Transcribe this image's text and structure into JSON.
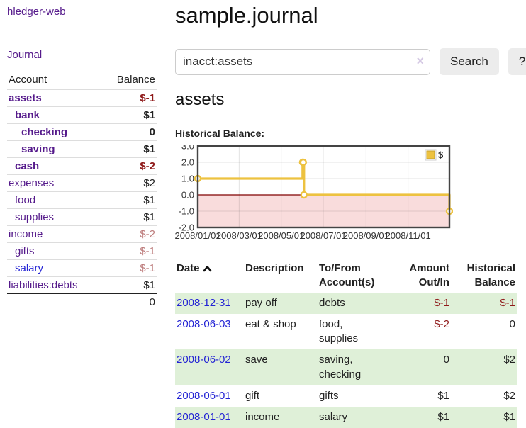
{
  "brand": "hledger-web",
  "sidebar": {
    "journal_link": "Journal",
    "accounts_header": {
      "account": "Account",
      "balance": "Balance"
    },
    "accounts": [
      {
        "name": "assets",
        "balance": "$-1",
        "level": 1,
        "bold": true
      },
      {
        "name": "bank",
        "balance": "$1",
        "level": 2,
        "bold": true
      },
      {
        "name": "checking",
        "balance": "0",
        "level": 3,
        "bold": true
      },
      {
        "name": "saving",
        "balance": "$1",
        "level": 3,
        "bold": true
      },
      {
        "name": "cash",
        "balance": "$-2",
        "level": 2,
        "bold": true
      },
      {
        "name": "expenses",
        "balance": "$2",
        "level": 1,
        "bold": false
      },
      {
        "name": "food",
        "balance": "$1",
        "level": 2,
        "bold": false
      },
      {
        "name": "supplies",
        "balance": "$1",
        "level": 2,
        "bold": false
      },
      {
        "name": "income",
        "balance": "$-2",
        "level": 1,
        "bold": false
      },
      {
        "name": "gifts",
        "balance": "$-1",
        "level": 2,
        "bold": false
      },
      {
        "name": "salary",
        "balance": "$-1",
        "level": 2,
        "bold": false,
        "link_color": "blue"
      },
      {
        "name": "liabilities:debts",
        "balance": "$1",
        "level": 1,
        "bold": false
      }
    ],
    "total": "0"
  },
  "header": {
    "title": "sample.journal"
  },
  "search": {
    "value": "inacct:assets",
    "clear_icon": "×",
    "button": "Search",
    "help_button": "?"
  },
  "account_page": {
    "title": "assets",
    "chart_label": "Historical Balance:"
  },
  "chart_data": {
    "type": "line",
    "step": true,
    "title": "Historical Balance",
    "series": [
      {
        "name": "$",
        "color": "#edc240",
        "points": [
          [
            "2008-01-01",
            1
          ],
          [
            "2008-06-01",
            2
          ],
          [
            "2008-06-02",
            2
          ],
          [
            "2008-06-03",
            0
          ],
          [
            "2008-12-31",
            -1
          ]
        ]
      }
    ],
    "x_ticks": [
      "2008/01/01",
      "2008/03/01",
      "2008/05/01",
      "2008/07/01",
      "2008/09/01",
      "2008/11/01"
    ],
    "y_ticks": [
      "3.0",
      "2.0",
      "1.0",
      "0.0",
      "-1.0",
      "-2.0"
    ],
    "xlim": [
      "2008-01-01",
      "2008-12-31"
    ],
    "ylim": [
      -2,
      3
    ],
    "grid": true,
    "legend_position": "top-right",
    "negative_region_color": "#f9dcdc",
    "zero_line_color": "#800000",
    "border_color": "#444444"
  },
  "register": {
    "headers": [
      "Date",
      "Description",
      "To/From Account(s)",
      "Amount Out/In",
      "Historical Balance"
    ],
    "rows": [
      {
        "date": "2008-12-31",
        "description": "pay off",
        "accounts": "debts",
        "amount": "$-1",
        "balance": "$-1"
      },
      {
        "date": "2008-06-03",
        "description": "eat & shop",
        "accounts": "food, supplies",
        "amount": "$-2",
        "balance": "0"
      },
      {
        "date": "2008-06-02",
        "description": "save",
        "accounts": "saving, checking",
        "amount": "0",
        "balance": "$2"
      },
      {
        "date": "2008-06-01",
        "description": "gift",
        "accounts": "gifts",
        "amount": "$1",
        "balance": "$2"
      },
      {
        "date": "2008-01-01",
        "description": "income",
        "accounts": "salary",
        "amount": "$1",
        "balance": "$1"
      }
    ]
  }
}
